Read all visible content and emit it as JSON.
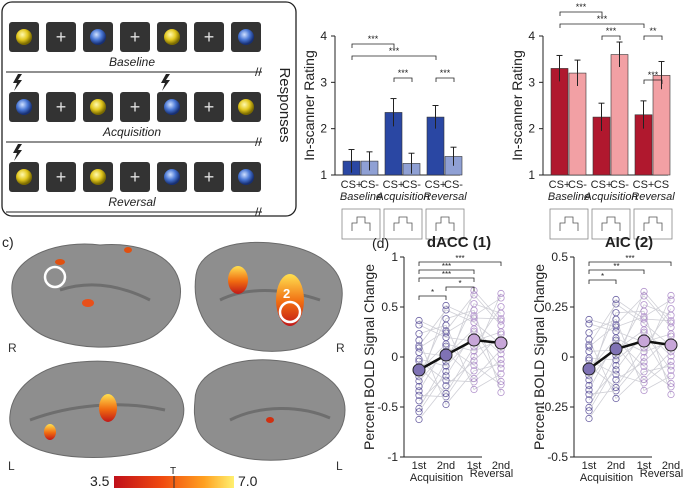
{
  "panel_a": {
    "rows": [
      {
        "label": "Baseline",
        "stimuli": [
          "Y",
          "+",
          "B",
          "+",
          "Y",
          "+",
          "B"
        ],
        "shocks": []
      },
      {
        "label": "Acquisition",
        "stimuli": [
          "B",
          "+",
          "Y",
          "+",
          "B",
          "+",
          "Y"
        ],
        "shocks": [
          0,
          4
        ]
      },
      {
        "label": "Reversal",
        "stimuli": [
          "Y",
          "+",
          "Y",
          "+",
          "B",
          "+",
          "B"
        ],
        "shocks": [
          0
        ]
      }
    ],
    "side_label": "Responses",
    "break_mark": "//"
  },
  "panel_c": {
    "label": "c)",
    "roi_numbers": [
      "1",
      "2"
    ],
    "hemisphere_labels": [
      "R",
      "R",
      "L",
      "L"
    ],
    "colorbar": {
      "min_label": "3.5",
      "max_label": "7.0",
      "mid_label": "T"
    }
  },
  "panel_d": {
    "label": "(d)"
  },
  "chart_data": [
    {
      "type": "bar",
      "ylabel": "In-scanner Rating",
      "ylim": [
        1,
        4
      ],
      "yticks": [
        "1",
        "2",
        "3",
        "4"
      ],
      "groups": [
        "Baseline",
        "Acquisition",
        "Reversal"
      ],
      "categories": [
        "CS+",
        "CS-",
        "CS+",
        "CS-",
        "CS+",
        "CS-"
      ],
      "values": [
        1.3,
        1.3,
        2.35,
        1.25,
        2.25,
        1.4
      ],
      "errors": [
        0.25,
        0.2,
        0.3,
        0.22,
        0.25,
        0.2
      ],
      "colors": [
        "#2a47a3",
        "#8fa0d4",
        "#2a47a3",
        "#8fa0d4",
        "#2a47a3",
        "#8fa0d4"
      ],
      "significance": [
        "***",
        "***",
        "***",
        "***"
      ]
    },
    {
      "type": "bar",
      "ylabel": "In-scanner Rating",
      "ylim": [
        1,
        4
      ],
      "yticks": [
        "1",
        "2",
        "3",
        "4"
      ],
      "groups": [
        "Baseline",
        "Acquisition",
        "Reversal"
      ],
      "categories": [
        "CS+",
        "CS-",
        "CS+",
        "CS-",
        "CS+",
        "CS"
      ],
      "values": [
        3.3,
        3.2,
        2.25,
        3.6,
        2.3,
        3.15
      ],
      "errors": [
        0.28,
        0.28,
        0.3,
        0.27,
        0.3,
        0.3
      ],
      "colors": [
        "#b0182e",
        "#f2a0a4",
        "#b0182e",
        "#f2a0a4",
        "#b0182e",
        "#f2a0a4"
      ],
      "significance": [
        "***",
        "***",
        "***",
        "***",
        "**"
      ]
    },
    {
      "type": "line",
      "title": "dACC (1)",
      "ylabel": "Percent BOLD Signal Change",
      "ylim": [
        -1,
        1
      ],
      "yticks": [
        "-1",
        "-0.5",
        "0",
        "0.5",
        "1"
      ],
      "x": [
        "1st",
        "2nd",
        "1st",
        "2nd"
      ],
      "group_labels": [
        "Acquisition",
        "Reversal"
      ],
      "series": [
        {
          "values": [
            -0.13,
            0.02,
            0.17,
            0.14
          ]
        }
      ],
      "significance": [
        "***",
        "***",
        "***",
        "*",
        "*"
      ],
      "colors": [
        "#4a3f8f",
        "#a07ac0"
      ]
    },
    {
      "type": "line",
      "title": "AIC (2)",
      "ylabel": "Percent BOLD Signal Change",
      "ylim": [
        -0.5,
        0.5
      ],
      "yticks": [
        "-0.5",
        "-0.25",
        "0",
        "0.25",
        "0.5"
      ],
      "x": [
        "1st",
        "2nd",
        "1st",
        "2nd"
      ],
      "group_labels": [
        "Acquisition",
        "Reversal"
      ],
      "series": [
        {
          "values": [
            -0.06,
            0.04,
            0.08,
            0.06
          ]
        }
      ],
      "significance": [
        "***",
        "**",
        "*"
      ],
      "colors": [
        "#4a3f8f",
        "#a07ac0"
      ]
    }
  ]
}
